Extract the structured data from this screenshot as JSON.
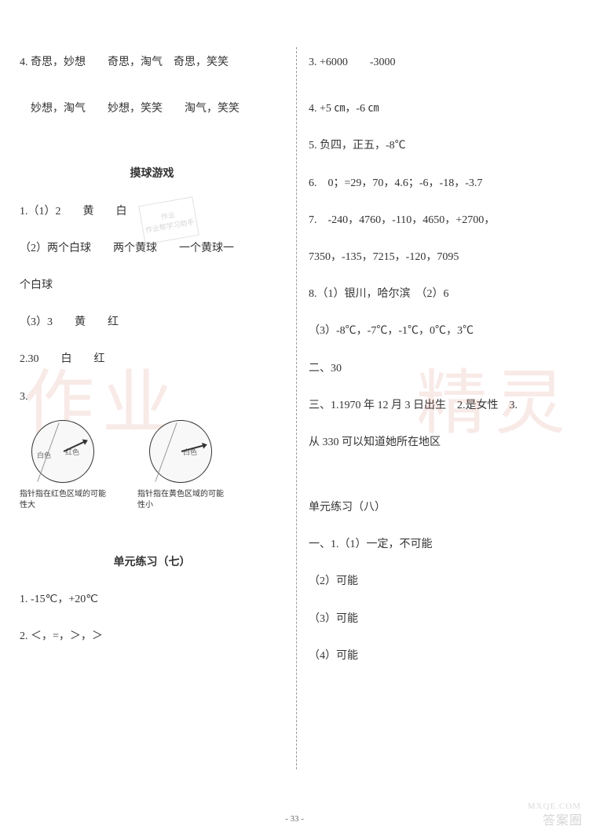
{
  "left": {
    "l4": "4. 奇思，妙想　　奇思，淘气　奇思，笑笑",
    "l4b": "　妙想，淘气　　妙想，笑笑　　淘气，笑笑",
    "section_ball": "摸球游戏",
    "b1_1": "1.（1）2　　黄　　白",
    "b1_2": "（2）两个白球　　两个黄球　　一个黄球一",
    "b1_2b": "个白球",
    "b1_3": "（3）3　　黄　　红",
    "b2_30": "2.30　　白　　红",
    "b3": "3.",
    "spinner1_l1": "白色",
    "spinner1_l2": "红色",
    "spinner1_cap": "指针指在红色区域的可能性大",
    "spinner2_l1": "白色",
    "spinner2_cap": "指针指在黄色区域的可能性小",
    "section_unit7": "单元练习（七）",
    "u7_1": "1. -15℃，+20℃",
    "u7_2": "2. ＜，=，＞，＞"
  },
  "right": {
    "r3": "3. +6000　　-3000",
    "r4": "4. +5 ㎝，-6 ㎝",
    "r5": "5. 负四，正五，-8℃",
    "r6": "6.　0；=29，70，4.6；-6，-18，-3.7",
    "r7": "7.　-240，4760，-110，4650，+2700，",
    "r7b": "7350，-135，7215，-120，7095",
    "r8": "8.（1）银川，哈尔滨　（2）6",
    "r8b": "（3）-8℃，-7℃，-1℃，0℃，3℃",
    "r_two": "二、30",
    "r_three": "三、1.1970 年 12 月 3 日出生　2.是女性　3.",
    "r_three_b": "从 330 可以知道她所在地区",
    "section_unit8": "单元练习（八）",
    "u8_1_1": "一、1.（1）一定，不可能",
    "u8_1_2": "（2）可能",
    "u8_1_3": "（3）可能",
    "u8_1_4": "（4）可能"
  },
  "watermark_left": "作业",
  "watermark_right": "精灵",
  "stamp_t1": "作业",
  "stamp_t2": "作业帮学习助手",
  "page_num": "- 33 -",
  "footer_mark": "答案圈",
  "footer_url": "MXQE.COM"
}
